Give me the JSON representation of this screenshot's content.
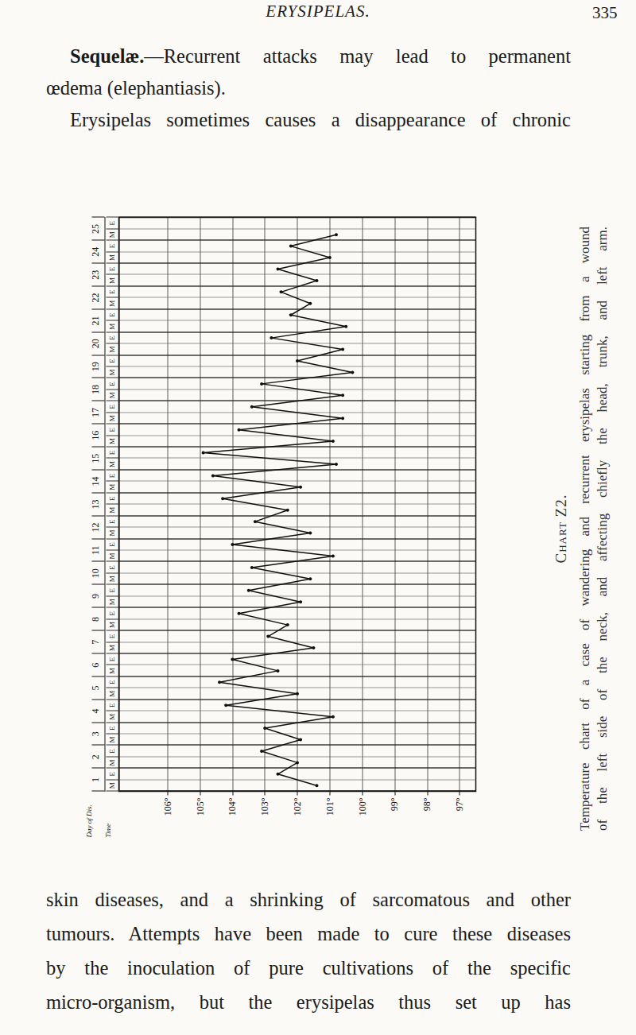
{
  "header": {
    "title": "ERYSIPELAS.",
    "page": "335"
  },
  "text_top": {
    "heading": "Sequelæ.",
    "lines": [
      "—Recurrent attacks may lead to permanent",
      "œdema (elephantiasis)."
    ],
    "next_lines": [
      "Erysipelas sometimes causes a disappearance of chronic"
    ]
  },
  "chart_data": {
    "type": "line",
    "corner_labels": [
      "Day of Dis.",
      "Time"
    ],
    "days": [
      "1",
      "2",
      "3",
      "4",
      "5",
      "6",
      "7",
      "8",
      "9",
      "10",
      "11",
      "12",
      "13",
      "14",
      "15",
      "16",
      "17",
      "18",
      "19",
      "20",
      "21",
      "22",
      "23",
      "24",
      "25"
    ],
    "categories": [
      "M",
      "E",
      "M",
      "E",
      "M",
      "E",
      "M",
      "E",
      "M",
      "E",
      "M",
      "E",
      "M",
      "E",
      "M",
      "E",
      "M",
      "E",
      "M",
      "E",
      "M",
      "E",
      "M",
      "E",
      "M",
      "E",
      "M",
      "E",
      "M",
      "E",
      "M",
      "E",
      "M",
      "E",
      "M",
      "E",
      "M",
      "E",
      "M",
      "E",
      "M",
      "E",
      "M",
      "E",
      "M",
      "E",
      "M",
      "E",
      "M",
      "E"
    ],
    "values": [
      101.4,
      102.6,
      102.0,
      103.1,
      101.9,
      103.0,
      100.9,
      104.2,
      102.0,
      104.4,
      102.6,
      104.0,
      101.5,
      102.9,
      102.3,
      103.8,
      101.9,
      103.5,
      101.6,
      103.4,
      100.9,
      104.0,
      101.6,
      103.3,
      102.3,
      104.3,
      101.9,
      104.6,
      100.8,
      104.9,
      100.9,
      103.8,
      100.6,
      103.4,
      100.6,
      103.1,
      100.3,
      102.0,
      100.6,
      102.8,
      100.5,
      102.2,
      101.6,
      102.5,
      101.4,
      102.6,
      101.0,
      102.2,
      100.8,
      null
    ],
    "color": "#111111",
    "ylim": [
      96.5,
      107.5
    ],
    "yticks": [
      {
        "value": 97,
        "label": "97°"
      },
      {
        "value": 98,
        "label": "98°"
      },
      {
        "value": 99,
        "label": "99°"
      },
      {
        "value": 100,
        "label": "100°"
      },
      {
        "value": 101,
        "label": "101°"
      },
      {
        "value": 102,
        "label": "102°"
      },
      {
        "value": 103,
        "label": "103°"
      },
      {
        "value": 104,
        "label": "104°"
      },
      {
        "value": 105,
        "label": "105°"
      },
      {
        "value": 106,
        "label": "106°"
      }
    ],
    "grid": true,
    "marker": "circle"
  },
  "caption": {
    "label": "Chart Z2.",
    "lines": [
      "Temperature chart of a case of wandering and recurrent erysipelas starting from a wound",
      "of the left side of the neck, and affecting chiefly the head, trunk, and left arm."
    ]
  },
  "text_bottom": {
    "lines": [
      "skin diseases, and a shrinking of sarcomatous and other",
      "tumours. Attempts have been made to cure these diseases",
      "by the inoculation of pure cultivations of the specific",
      "micro-organism, but the erysipelas thus set up has"
    ]
  }
}
